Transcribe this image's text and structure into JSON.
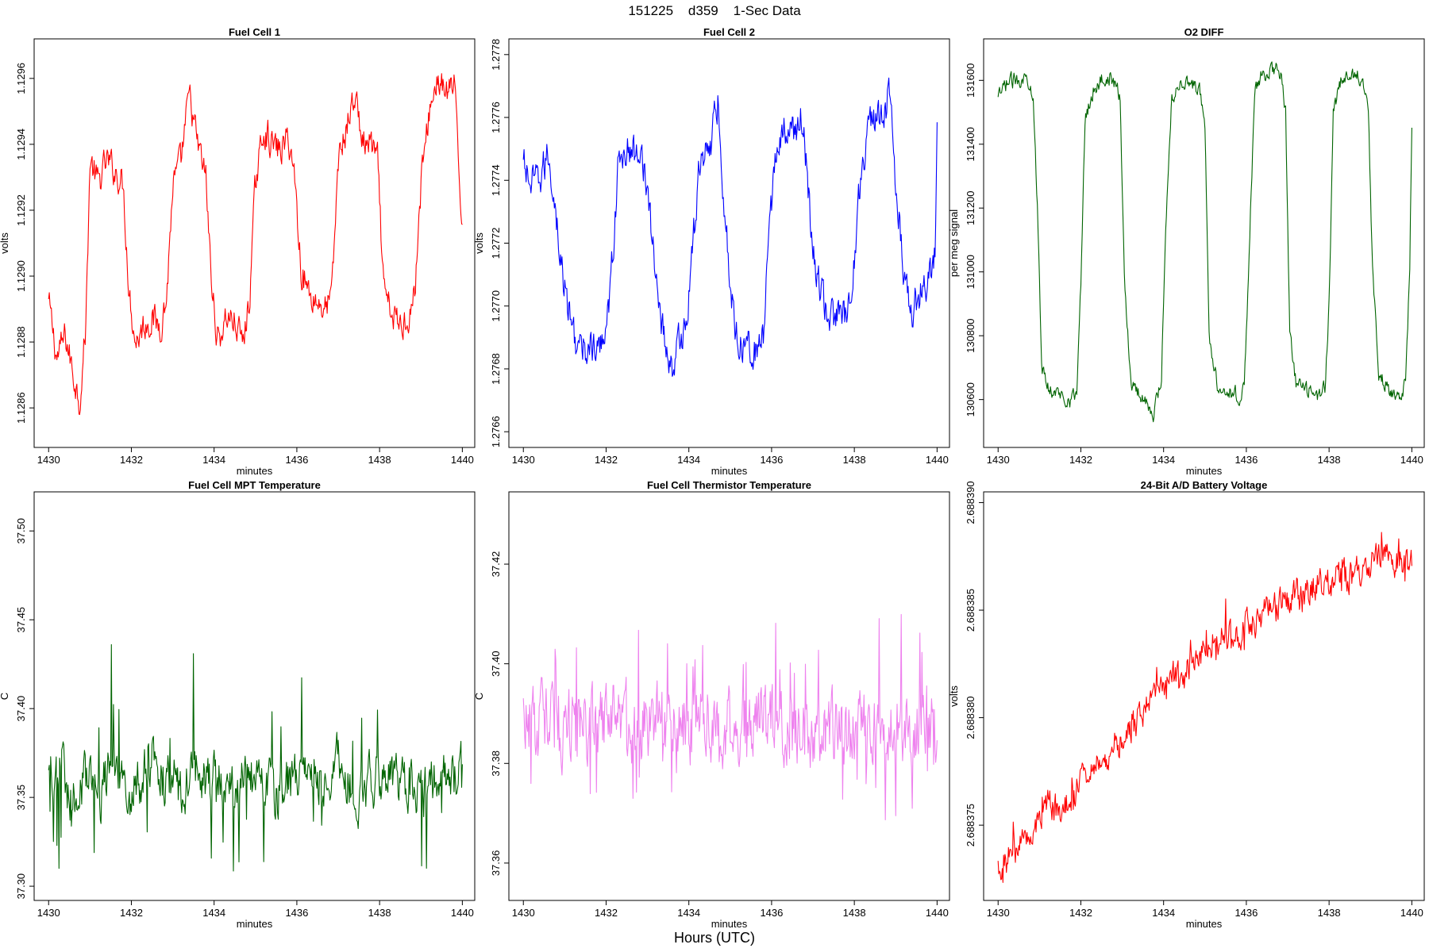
{
  "page_title": "151225    d359    1-Sec Data",
  "footer_label": "Hours (UTC)",
  "chart_data": [
    {
      "type": "line",
      "title": "Fuel Cell 1",
      "xlabel": "minutes",
      "ylabel": "volts",
      "color": "#ff0000",
      "xlim": [
        1429.65,
        1440.3
      ],
      "ylim": [
        1.12848,
        1.12972
      ],
      "xticks": [
        1430,
        1432,
        1434,
        1436,
        1438,
        1440
      ],
      "xtick_labels": [
        "1430",
        "1432",
        "1434",
        "1436",
        "1438",
        "1440"
      ],
      "yticks": [
        1.1286,
        1.1288,
        1.129,
        1.1292,
        1.1294,
        1.1296
      ],
      "ytick_labels": [
        "1.1286",
        "1.1288",
        "1.1290",
        "1.1292",
        "1.1294",
        "1.1296"
      ],
      "x": [
        1430.0,
        1430.2,
        1430.4,
        1430.6,
        1430.75,
        1430.9,
        1431.0,
        1431.2,
        1431.4,
        1431.6,
        1431.8,
        1431.95,
        1432.1,
        1432.3,
        1432.5,
        1432.7,
        1432.85,
        1433.0,
        1433.2,
        1433.4,
        1433.6,
        1433.8,
        1433.95,
        1434.1,
        1434.3,
        1434.5,
        1434.7,
        1434.85,
        1435.0,
        1435.2,
        1435.4,
        1435.6,
        1435.8,
        1435.95,
        1436.1,
        1436.3,
        1436.5,
        1436.7,
        1436.85,
        1437.0,
        1437.2,
        1437.4,
        1437.6,
        1437.8,
        1437.95,
        1438.1,
        1438.3,
        1438.5,
        1438.7,
        1438.85,
        1439.0,
        1439.2,
        1439.4,
        1439.6,
        1439.8,
        1439.95,
        1440.0
      ],
      "y": [
        1.12892,
        1.12875,
        1.12882,
        1.1287,
        1.12862,
        1.12885,
        1.12935,
        1.12928,
        1.12935,
        1.12932,
        1.12928,
        1.12895,
        1.1288,
        1.12885,
        1.12887,
        1.12885,
        1.12893,
        1.12927,
        1.12935,
        1.12955,
        1.1294,
        1.1293,
        1.12895,
        1.1288,
        1.12888,
        1.12886,
        1.1288,
        1.12892,
        1.12928,
        1.12945,
        1.1294,
        1.12938,
        1.12942,
        1.1293,
        1.12902,
        1.12895,
        1.12892,
        1.1289,
        1.12895,
        1.12935,
        1.12945,
        1.12955,
        1.1294,
        1.1294,
        1.12935,
        1.12895,
        1.12888,
        1.12885,
        1.12888,
        1.12895,
        1.12928,
        1.1295,
        1.1296,
        1.12955,
        1.12958,
        1.12925,
        1.12917
      ]
    },
    {
      "type": "line",
      "title": "Fuel Cell 2",
      "xlabel": "minutes",
      "ylabel": "volts",
      "color": "#0000ff",
      "xlim": [
        1429.65,
        1440.3
      ],
      "ylim": [
        1.27655,
        1.27785
      ],
      "xticks": [
        1430,
        1432,
        1434,
        1436,
        1438,
        1440
      ],
      "xtick_labels": [
        "1430",
        "1432",
        "1434",
        "1436",
        "1438",
        "1440"
      ],
      "yticks": [
        1.2766,
        1.2768,
        1.277,
        1.2772,
        1.2774,
        1.2776,
        1.2778
      ],
      "ytick_labels": [
        "1.2766",
        "1.2768",
        "1.2770",
        "1.2772",
        "1.2774",
        "1.2776",
        "1.2778"
      ],
      "x": [
        1430.0,
        1430.2,
        1430.4,
        1430.6,
        1430.75,
        1430.9,
        1431.0,
        1431.2,
        1431.4,
        1431.6,
        1431.8,
        1431.95,
        1432.1,
        1432.3,
        1432.5,
        1432.7,
        1432.85,
        1433.0,
        1433.2,
        1433.4,
        1433.6,
        1433.8,
        1433.95,
        1434.1,
        1434.3,
        1434.5,
        1434.7,
        1434.85,
        1435.0,
        1435.2,
        1435.4,
        1435.6,
        1435.8,
        1435.95,
        1436.1,
        1436.3,
        1436.5,
        1436.7,
        1436.85,
        1437.0,
        1437.2,
        1437.4,
        1437.6,
        1437.8,
        1437.95,
        1438.1,
        1438.3,
        1438.5,
        1438.7,
        1438.85,
        1439.0,
        1439.2,
        1439.4,
        1439.6,
        1439.8,
        1439.95,
        1440.0
      ],
      "y": [
        1.27745,
        1.27738,
        1.2774,
        1.27748,
        1.27735,
        1.27715,
        1.27705,
        1.27692,
        1.27685,
        1.27688,
        1.27684,
        1.27692,
        1.27705,
        1.27745,
        1.2775,
        1.27748,
        1.27752,
        1.27735,
        1.2771,
        1.2769,
        1.2768,
        1.2769,
        1.27695,
        1.2772,
        1.2775,
        1.2775,
        1.27765,
        1.27735,
        1.27705,
        1.27688,
        1.2769,
        1.27685,
        1.2769,
        1.27722,
        1.2775,
        1.27755,
        1.27755,
        1.2776,
        1.27745,
        1.27715,
        1.27705,
        1.27695,
        1.27698,
        1.27695,
        1.27705,
        1.27735,
        1.27755,
        1.2776,
        1.27758,
        1.27768,
        1.2774,
        1.2771,
        1.277,
        1.27705,
        1.27708,
        1.27715,
        1.2776
      ]
    },
    {
      "type": "line",
      "title": "O2 DIFF",
      "xlabel": "minutes",
      "ylabel": "per meg signal",
      "color": "#006400",
      "xlim": [
        1429.65,
        1440.3
      ],
      "ylim": [
        130450,
        131730
      ],
      "xticks": [
        1430,
        1432,
        1434,
        1436,
        1438,
        1440
      ],
      "xtick_labels": [
        "1430",
        "1432",
        "1434",
        "1436",
        "1438",
        "1440"
      ],
      "yticks": [
        130600,
        130800,
        131000,
        131200,
        131400,
        131600
      ],
      "ytick_labels": [
        "130600",
        "130800",
        "131000",
        "131200",
        "131400",
        "131600"
      ],
      "x": [
        1430.0,
        1430.2,
        1430.4,
        1430.6,
        1430.75,
        1430.85,
        1430.95,
        1431.05,
        1431.2,
        1431.4,
        1431.6,
        1431.75,
        1431.9,
        1432.0,
        1432.1,
        1432.3,
        1432.5,
        1432.7,
        1432.85,
        1432.95,
        1433.05,
        1433.2,
        1433.4,
        1433.6,
        1433.75,
        1433.85,
        1433.95,
        1434.05,
        1434.2,
        1434.4,
        1434.6,
        1434.75,
        1434.9,
        1435.0,
        1435.1,
        1435.3,
        1435.5,
        1435.7,
        1435.85,
        1435.95,
        1436.05,
        1436.2,
        1436.4,
        1436.6,
        1436.75,
        1436.85,
        1436.95,
        1437.05,
        1437.2,
        1437.4,
        1437.6,
        1437.75,
        1437.9,
        1438.0,
        1438.1,
        1438.3,
        1438.5,
        1438.7,
        1438.85,
        1438.95,
        1439.05,
        1439.2,
        1439.4,
        1439.6,
        1439.75,
        1439.85,
        1439.95,
        1440.0
      ],
      "y": [
        131540,
        131590,
        131600,
        131610,
        131600,
        131560,
        131200,
        130700,
        130640,
        130620,
        130610,
        130600,
        130620,
        130960,
        131480,
        131570,
        131600,
        131610,
        131580,
        131540,
        131000,
        130660,
        130620,
        130590,
        130560,
        130600,
        130680,
        131150,
        131550,
        131590,
        131600,
        131580,
        131560,
        131450,
        130800,
        130650,
        130630,
        130620,
        130610,
        130630,
        131000,
        131560,
        131620,
        131630,
        131640,
        131600,
        131500,
        130800,
        130650,
        130630,
        130620,
        130610,
        130640,
        130900,
        131500,
        131600,
        131610,
        131620,
        131590,
        131520,
        131000,
        130680,
        130640,
        130620,
        130600,
        130650,
        131000,
        131450
      ]
    },
    {
      "type": "line",
      "title": "Fuel Cell MPT Temperature",
      "xlabel": "minutes",
      "ylabel": "C",
      "color": "#006400",
      "xlim": [
        1429.65,
        1440.3
      ],
      "ylim": [
        37.292,
        37.522
      ],
      "xticks": [
        1430,
        1432,
        1434,
        1436,
        1438,
        1440
      ],
      "xtick_labels": [
        "1430",
        "1432",
        "1434",
        "1436",
        "1438",
        "1440"
      ],
      "yticks": [
        37.3,
        37.35,
        37.4,
        37.45,
        37.5
      ],
      "ytick_labels": [
        "37.30",
        "37.35",
        "37.40",
        "37.45",
        "37.50"
      ],
      "x": [
        1430.0,
        1430.25,
        1430.5,
        1430.75,
        1431.0,
        1431.25,
        1431.5,
        1431.75,
        1432.0,
        1432.25,
        1432.5,
        1432.75,
        1433.0,
        1433.25,
        1433.5,
        1433.75,
        1434.0,
        1434.25,
        1434.5,
        1434.75,
        1435.0,
        1435.25,
        1435.5,
        1435.75,
        1436.0,
        1436.25,
        1436.5,
        1436.75,
        1437.0,
        1437.25,
        1437.5,
        1437.75,
        1438.0,
        1438.25,
        1438.5,
        1438.75,
        1439.0,
        1439.25,
        1439.5,
        1439.75,
        1440.0
      ],
      "y": [
        37.36,
        37.37,
        37.35,
        37.36,
        37.36,
        37.35,
        37.37,
        37.36,
        37.35,
        37.36,
        37.37,
        37.36,
        37.36,
        37.35,
        37.37,
        37.36,
        37.36,
        37.36,
        37.35,
        37.37,
        37.36,
        37.36,
        37.35,
        37.36,
        37.36,
        37.37,
        37.36,
        37.36,
        37.37,
        37.36,
        37.35,
        37.36,
        37.36,
        37.37,
        37.36,
        37.36,
        37.35,
        37.36,
        37.37,
        37.36,
        37.37
      ]
    },
    {
      "type": "line",
      "title": "Fuel Cell Thermistor Temperature",
      "xlabel": "minutes",
      "ylabel": "C",
      "color": "#ee82ee",
      "xlim": [
        1429.65,
        1440.3
      ],
      "ylim": [
        37.3525,
        37.4345
      ],
      "xticks": [
        1430,
        1432,
        1434,
        1436,
        1438,
        1440
      ],
      "xtick_labels": [
        "1430",
        "1432",
        "1434",
        "1436",
        "1438",
        "1440"
      ],
      "yticks": [
        37.36,
        37.38,
        37.4,
        37.42
      ],
      "ytick_labels": [
        "37.36",
        "37.38",
        "37.40",
        "37.42"
      ],
      "x": [
        1430.0,
        1430.25,
        1430.5,
        1430.75,
        1431.0,
        1431.25,
        1431.5,
        1431.75,
        1432.0,
        1432.25,
        1432.5,
        1432.75,
        1433.0,
        1433.25,
        1433.5,
        1433.75,
        1434.0,
        1434.25,
        1434.5,
        1434.75,
        1435.0,
        1435.25,
        1435.5,
        1435.75,
        1436.0,
        1436.25,
        1436.5,
        1436.75,
        1437.0,
        1437.25,
        1437.5,
        1437.75,
        1438.0,
        1438.25,
        1438.5,
        1438.75,
        1439.0,
        1439.25,
        1439.5,
        1439.75,
        1440.0
      ],
      "y": [
        37.39,
        37.388,
        37.389,
        37.388,
        37.387,
        37.389,
        37.388,
        37.388,
        37.389,
        37.388,
        37.388,
        37.387,
        37.388,
        37.389,
        37.388,
        37.388,
        37.387,
        37.388,
        37.389,
        37.388,
        37.387,
        37.388,
        37.388,
        37.389,
        37.388,
        37.387,
        37.386,
        37.387,
        37.386,
        37.387,
        37.386,
        37.387,
        37.386,
        37.387,
        37.386,
        37.387,
        37.386,
        37.387,
        37.386,
        37.387,
        37.387
      ]
    },
    {
      "type": "line",
      "title": "24-Bit A/D Battery Voltage",
      "xlabel": "minutes",
      "ylabel": "volts",
      "color": "#ff0000",
      "xlim": [
        1429.65,
        1440.3
      ],
      "ylim": [
        2.6883715,
        2.6883905
      ],
      "xticks": [
        1430,
        1432,
        1434,
        1436,
        1438,
        1440
      ],
      "xtick_labels": [
        "1430",
        "1432",
        "1434",
        "1436",
        "1438",
        "1440"
      ],
      "yticks": [
        2.688375,
        2.68838,
        2.688385,
        2.68839
      ],
      "ytick_labels": [
        "2.688375",
        "2.688380",
        "2.688385",
        "2.688390"
      ],
      "x": [
        1430.0,
        1430.25,
        1430.5,
        1430.75,
        1431.0,
        1431.25,
        1431.5,
        1431.75,
        1432.0,
        1432.25,
        1432.5,
        1432.75,
        1433.0,
        1433.25,
        1433.5,
        1433.75,
        1434.0,
        1434.25,
        1434.5,
        1434.75,
        1435.0,
        1435.25,
        1435.5,
        1435.75,
        1436.0,
        1436.25,
        1436.5,
        1436.75,
        1437.0,
        1437.25,
        1437.5,
        1437.75,
        1438.0,
        1438.25,
        1438.5,
        1438.75,
        1439.0,
        1439.25,
        1439.5,
        1439.75,
        1440.0
      ],
      "y": [
        2.688373,
        2.6883735,
        2.688374,
        2.6883748,
        2.6883755,
        2.688376,
        2.6883756,
        2.6883762,
        2.688377,
        2.6883775,
        2.688378,
        2.6883786,
        2.688379,
        2.6883795,
        2.6883802,
        2.6883808,
        2.6883812,
        2.6883818,
        2.6883822,
        2.6883828,
        2.6883832,
        2.6883836,
        2.688384,
        2.6883838,
        2.6883843,
        2.6883846,
        2.688385,
        2.6883853,
        2.6883855,
        2.6883858,
        2.688386,
        2.6883862,
        2.6883862,
        2.6883865,
        2.6883866,
        2.6883868,
        2.6883872,
        2.6883876,
        2.6883874,
        2.6883872,
        2.688387
      ]
    }
  ]
}
